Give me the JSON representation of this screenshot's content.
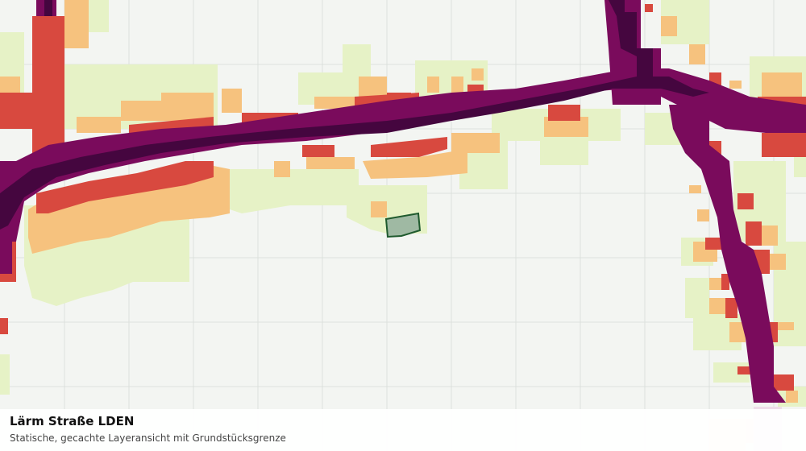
{
  "layer": {
    "title": "Lärm Straße LDEN",
    "subtitle": "Statische, gecachte Layeransicht mit Grundstücksgrenze"
  },
  "colors": {
    "background": "#f3f5f2",
    "grid": "#dde1dd",
    "class_1": "#e6f2c6",
    "class_2": "#f6c27e",
    "class_3": "#d8493f",
    "class_4": "#7a0b5c",
    "class_5": "#45063f",
    "parcel_fill": "#9fb9a3",
    "parcel_stroke": "#1f5a2e"
  }
}
